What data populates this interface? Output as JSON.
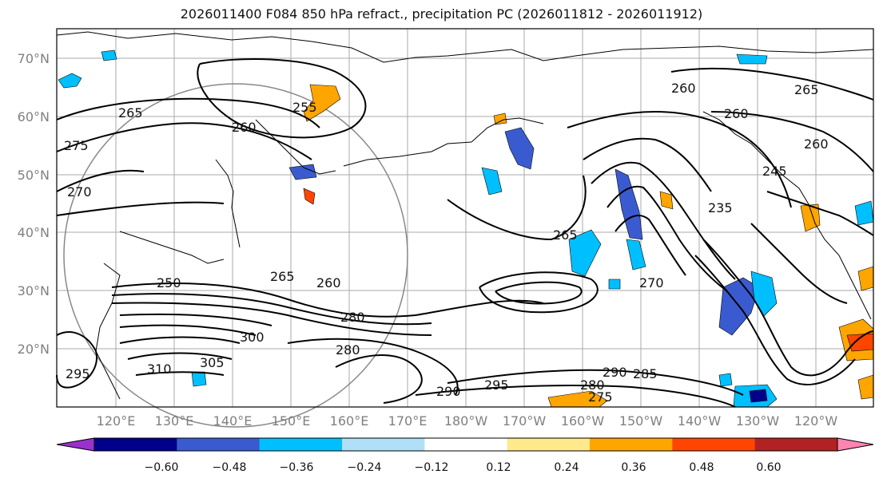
{
  "title": "2026011400 F084 850 hPa refract., precipitation PC (2026011812 - 2026011912)",
  "map": {
    "lat_ticks": [
      "70°N",
      "60°N",
      "50°N",
      "40°N",
      "30°N",
      "20°N"
    ],
    "lon_ticks": [
      "120°E",
      "130°E",
      "140°E",
      "150°E",
      "160°E",
      "170°E",
      "180°W",
      "170°W",
      "160°W",
      "150°W",
      "140°W",
      "130°W",
      "120°W"
    ],
    "contour_labels": [
      "265",
      "275",
      "270",
      "260",
      "255",
      "260",
      "260",
      "265",
      "260",
      "245",
      "235",
      "265",
      "270",
      "265",
      "260",
      "250",
      "280",
      "300",
      "280",
      "310",
      "305",
      "295",
      "290",
      "290",
      "280",
      "275",
      "285",
      "295"
    ]
  },
  "colorbar": {
    "colors": [
      "#9932cc",
      "#00008b",
      "#3a5bd0",
      "#00bfff",
      "#b0e0f8",
      "#ffffff",
      "#ffe98a",
      "#ffa500",
      "#ff4500",
      "#b22222",
      "#ff85b0"
    ],
    "ticks": [
      "−0.60",
      "−0.48",
      "−0.36",
      "−0.24",
      "−0.12",
      "0.12",
      "0.24",
      "0.36",
      "0.48",
      "0.60"
    ]
  }
}
